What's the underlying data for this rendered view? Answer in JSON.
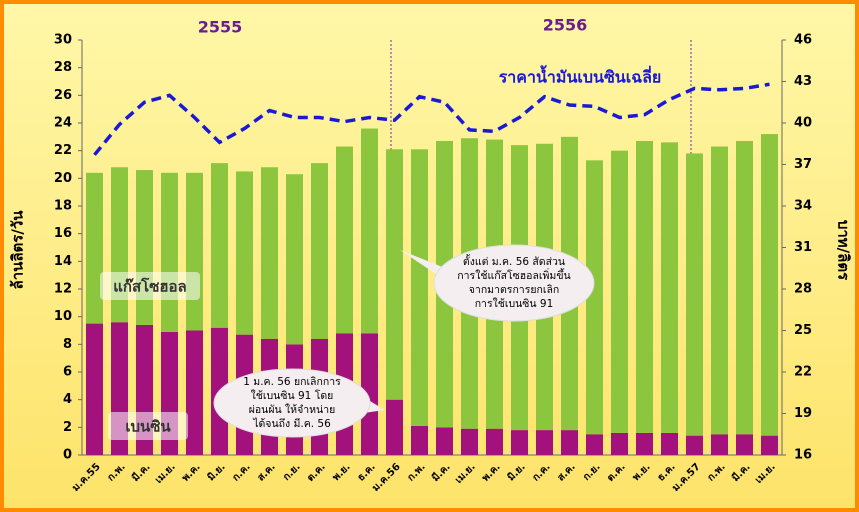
{
  "chart_data": {
    "type": "bar",
    "stacked": true,
    "y_label": "ล้านลิตร/วัน",
    "y2_label": "บาท/ลิตร",
    "years": [
      "2555",
      "2556"
    ],
    "categories": [
      "ม.ค.55",
      "ก.พ.",
      "มี.ค.",
      "เม.ย.",
      "พ.ค.",
      "มิ.ย.",
      "ก.ค.",
      "ส.ค.",
      "ก.ย.",
      "ต.ค.",
      "พ.ย.",
      "ธ.ค.",
      "ม.ค.56",
      "ก.พ.",
      "มี.ค.",
      "เม.ย.",
      "พ.ค.",
      "มิ.ย.",
      "ก.ค.",
      "ส.ค.",
      "ก.ย.",
      "ต.ค.",
      "พ.ย.",
      "ธ.ค.",
      "ม.ค.57",
      "ก.พ.",
      "มี.ค.",
      "เม.ย."
    ],
    "series": [
      {
        "name": "เบนซิน",
        "color": "#a3127c",
        "values": [
          9.5,
          9.6,
          9.4,
          8.9,
          9.0,
          9.2,
          8.7,
          8.4,
          8.0,
          8.4,
          8.8,
          8.8,
          4.0,
          2.1,
          2.0,
          1.9,
          1.9,
          1.8,
          1.8,
          1.8,
          1.5,
          1.6,
          1.6,
          1.6,
          1.4,
          1.5,
          1.5,
          1.4
        ]
      },
      {
        "name": "แก๊สโซฮอล",
        "color": "#8cc63f",
        "values": [
          10.9,
          11.2,
          11.2,
          11.5,
          11.4,
          11.9,
          11.8,
          12.4,
          12.3,
          12.7,
          13.5,
          14.8,
          18.1,
          20.0,
          20.7,
          21.0,
          20.9,
          20.6,
          20.7,
          21.2,
          19.8,
          20.4,
          21.1,
          21.0,
          20.4,
          20.8,
          21.2,
          21.8
        ]
      },
      {
        "name": "ราคาน้ำมันเบนซินเฉลี่ย",
        "color": "#1a1ad6",
        "axis": "y2",
        "type": "line",
        "values": [
          37.7,
          39.9,
          41.5,
          42.0,
          40.4,
          38.6,
          39.6,
          40.9,
          40.4,
          40.4,
          40.1,
          40.4,
          40.2,
          41.9,
          41.5,
          39.5,
          39.4,
          40.4,
          41.9,
          41.3,
          41.2,
          40.4,
          40.6,
          41.7,
          42.5,
          42.4,
          42.5,
          42.8
        ]
      }
    ],
    "ylim": [
      0,
      30
    ],
    "yticks": [
      0,
      2,
      4,
      6,
      8,
      10,
      12,
      14,
      16,
      18,
      20,
      22,
      24,
      26,
      28,
      30
    ],
    "y2lim": [
      16,
      46
    ],
    "y2ticks": [
      16,
      19,
      22,
      25,
      28,
      31,
      34,
      37,
      40,
      43,
      46
    ],
    "annotations": [
      [
        "1 ม.ค. 56 ยกเลิกการ",
        "ใช้เบนซิน 91 โดย",
        "ผ่อนผัน ให้จำหน่าย",
        "ได้จนถึง มี.ค. 56"
      ],
      [
        "ตั้งแต่ ม.ค. 56 สัดส่วน",
        "การใช้แก๊สโซฮอลเพิ่มขึ้น",
        "จากมาตรการยกเลิก",
        "การใช้เบนซิน 91"
      ]
    ]
  }
}
